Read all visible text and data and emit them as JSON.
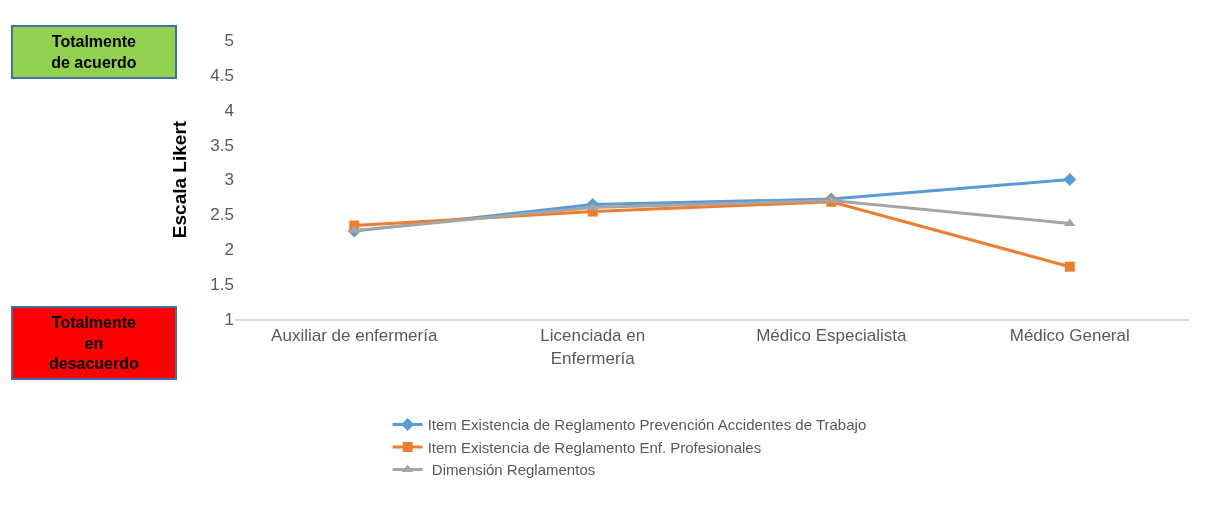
{
  "chart_data": {
    "type": "line",
    "ylabel": "Escala Likert",
    "categories": [
      "Auxiliar de enfermería",
      "Licenciada en Enfermería",
      "Médico Especialista",
      "Médico General"
    ],
    "series": [
      {
        "name": "Item Existencia de Reglamento Prevención Accidentes de Trabajo",
        "color": "#5b9bd5",
        "marker": "diamond",
        "values": [
          2.26,
          2.64,
          2.72,
          3.0
        ]
      },
      {
        "name": "Item Existencia de Reglamento Enf. Profesionales",
        "color": "#ed7d31",
        "marker": "square",
        "values": [
          2.34,
          2.54,
          2.68,
          1.75
        ]
      },
      {
        "name": " Dimensión Reglamentos",
        "color": "#a5a5a5",
        "marker": "triangle",
        "values": [
          2.27,
          2.6,
          2.7,
          2.37
        ]
      }
    ],
    "ylim": [
      1,
      5
    ],
    "yticks": [
      1,
      1.5,
      2,
      2.5,
      3,
      3.5,
      4,
      4.5,
      5
    ],
    "grid": false,
    "legend": "bottom",
    "line_style": "solid",
    "annotations": [
      "Totalmente de acuerdo",
      "Totalmente en desacuerdo"
    ]
  }
}
